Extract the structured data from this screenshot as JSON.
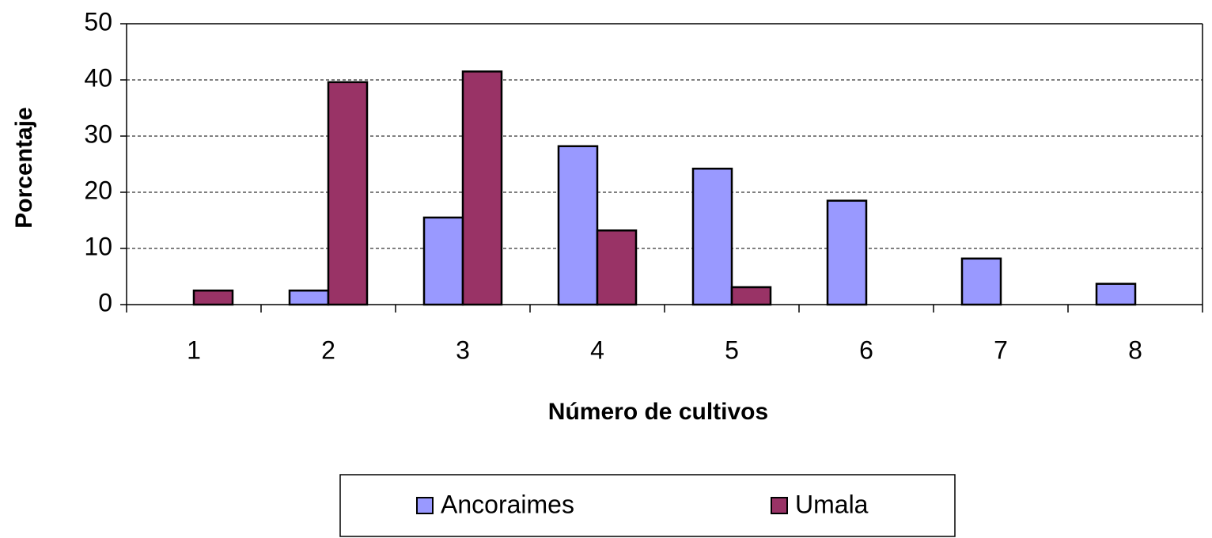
{
  "chart_data": {
    "type": "bar",
    "xlabel": "Número de cultivos",
    "ylabel": "Porcentaje",
    "categories": [
      "1",
      "2",
      "3",
      "4",
      "5",
      "6",
      "7",
      "8"
    ],
    "series": [
      {
        "name": "Ancoraimes",
        "color": "#9999ff",
        "values": [
          0,
          2.5,
          15.5,
          28.2,
          24.2,
          18.5,
          8.2,
          3.7
        ]
      },
      {
        "name": "Umala",
        "color": "#993366",
        "values": [
          2.5,
          39.6,
          41.5,
          13.2,
          3.1,
          0,
          0,
          0
        ]
      }
    ],
    "ylim": [
      0,
      50
    ],
    "yticks": [
      0,
      10,
      20,
      30,
      40,
      50
    ],
    "grid": true,
    "legend": "bottom"
  }
}
